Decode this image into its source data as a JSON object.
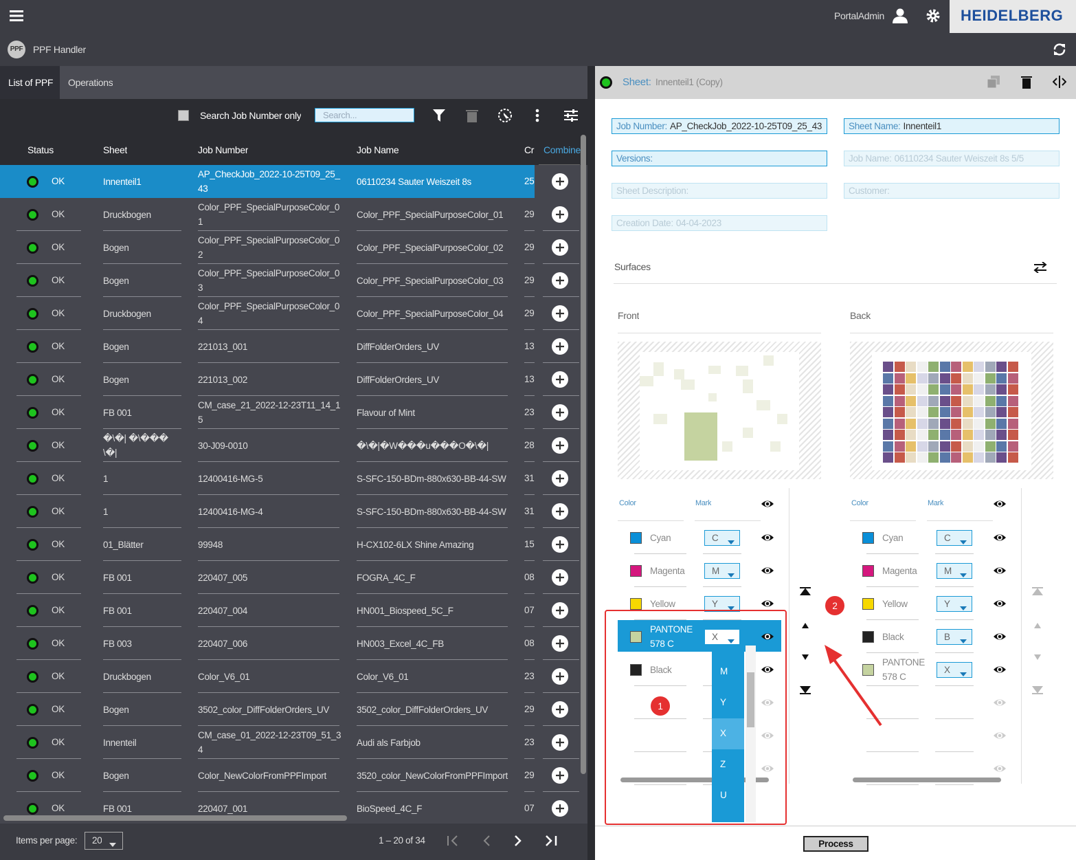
{
  "header": {
    "menu_user": "PortalAdmin",
    "brand": "HEIDELBERG",
    "app_logo": "PPF",
    "app_name": "PPF Handler"
  },
  "tabs": [
    "List of PPF",
    "Operations"
  ],
  "toolbar": {
    "search_label": "Search Job Number only",
    "search_placeholder": "Search..."
  },
  "table": {
    "columns": [
      "Status",
      "Sheet",
      "Job Number",
      "Job Name",
      "Cr",
      "Combine"
    ],
    "rows": [
      [
        "OK",
        "Innenteil1",
        "AP_CheckJob_2022-10-25T09_25_43",
        "06110234 Sauter Weiszeit 8s",
        "25"
      ],
      [
        "OK",
        "Druckbogen",
        "Color_PPF_SpecialPurposeColor_01",
        "Color_PPF_SpecialPurposeColor_01",
        "29"
      ],
      [
        "OK",
        "Bogen",
        "Color_PPF_SpecialPurposeColor_02",
        "Color_PPF_SpecialPurposeColor_02",
        "29"
      ],
      [
        "OK",
        "Bogen",
        "Color_PPF_SpecialPurposeColor_03",
        "Color_PPF_SpecialPurposeColor_03",
        "29"
      ],
      [
        "OK",
        "Druckbogen",
        "Color_PPF_SpecialPurposeColor_04",
        "Color_PPF_SpecialPurposeColor_04",
        "29"
      ],
      [
        "OK",
        "Bogen",
        "221013_001",
        "DiffFolderOrders_UV",
        "13"
      ],
      [
        "OK",
        "Bogen",
        "221013_002",
        "DiffFolderOrders_UV",
        "13"
      ],
      [
        "OK",
        "FB 001",
        "CM_case_21_2022-12-23T11_14_15",
        "Flavour of Mint",
        "23"
      ],
      [
        "OK",
        "�\\�| �\\���\\�|",
        "30-J09-0010",
        "�\\�|�W���u���O�\\�|",
        "28"
      ],
      [
        "OK",
        "1",
        "12400416-MG-5",
        "S-SFC-150-BDm-880x630-BB-44-SW",
        "31"
      ],
      [
        "OK",
        "1",
        "12400416-MG-4",
        "S-SFC-150-BDm-880x630-BB-44-SW",
        "31"
      ],
      [
        "OK",
        "01_Blätter",
        "99948",
        "H-CX102-6LX Shine Amazing",
        "15"
      ],
      [
        "OK",
        "FB 001",
        "220407_005",
        "FOGRA_4C_F",
        "08"
      ],
      [
        "OK",
        "FB 001",
        "220407_004",
        "HN001_Biospeed_5C_F",
        "07"
      ],
      [
        "OK",
        "FB 003",
        "220407_006",
        "HN003_Excel_4C_FB",
        "08"
      ],
      [
        "OK",
        "Druckbogen",
        "Color_V6_01",
        "Color_V6_01",
        "23"
      ],
      [
        "OK",
        "Bogen",
        "3502_color_DiffFolderOrders_UV",
        "3502_color_DiffFolderOrders_UV",
        "29"
      ],
      [
        "OK",
        "Innenteil",
        "CM_case_01_2022-12-23T09_51_34",
        "Audi als Farbjob",
        "23"
      ],
      [
        "OK",
        "Bogen",
        "Color_NewColorFromPPFImport",
        "3520_color_NewColorFromPPFImport",
        "29"
      ],
      [
        "OK",
        "FB 001",
        "220407_001",
        "BioSpeed_4C_F",
        "07"
      ]
    ]
  },
  "footer": {
    "items_label": "Items per page:",
    "items_value": "20",
    "range": "1 – 20 of 34"
  },
  "sheet": {
    "label": "Sheet:",
    "name": "Innenteil1 (Copy)"
  },
  "fields": [
    {
      "label": "Job Number:",
      "value": "AP_CheckJob_2022-10-25T09_25_43"
    },
    {
      "label": "Sheet Name:",
      "value": "Innenteil1"
    },
    {
      "label": "Versions:"
    },
    {
      "label": "Job Name:",
      "value": "06110234 Sauter Weiszeit 8s 5/5"
    },
    {
      "label": "Sheet Description:"
    },
    {
      "label": "Customer:"
    },
    {
      "label": "Creation Date:",
      "value": "04-04-2023"
    }
  ],
  "surfaces": {
    "title": "Surfaces",
    "front": {
      "title": "Front",
      "color_header": "Color",
      "mark_header": "Mark",
      "colors": [
        {
          "name": "Cyan",
          "mark": "C",
          "swatch": "#0a8fd8"
        },
        {
          "name": "Magenta",
          "mark": "M",
          "swatch": "#d5177e"
        },
        {
          "name": "Yellow",
          "mark": "Y",
          "swatch": "#f7d800"
        },
        {
          "name": "PANTONE 578 C",
          "mark": "X",
          "swatch": "#c5d3a0"
        },
        {
          "name": "Black",
          "swatch": "#222222"
        }
      ]
    },
    "back": {
      "title": "Back",
      "color_header": "Color",
      "mark_header": "Mark",
      "colors": [
        {
          "name": "Cyan",
          "mark": "C",
          "swatch": "#0a8fd8"
        },
        {
          "name": "Magenta",
          "mark": "M",
          "swatch": "#d5177e"
        },
        {
          "name": "Yellow",
          "mark": "Y",
          "swatch": "#f7d800"
        },
        {
          "name": "Black",
          "mark": "B",
          "swatch": "#222222"
        },
        {
          "name": "PANTONE 578 C",
          "mark": "X",
          "swatch": "#c5d3a0"
        }
      ]
    },
    "dropdown_options": [
      "M",
      "Y",
      "X",
      "Z",
      "U"
    ]
  },
  "annotations": [
    "1",
    "2"
  ],
  "process_button": "Process"
}
